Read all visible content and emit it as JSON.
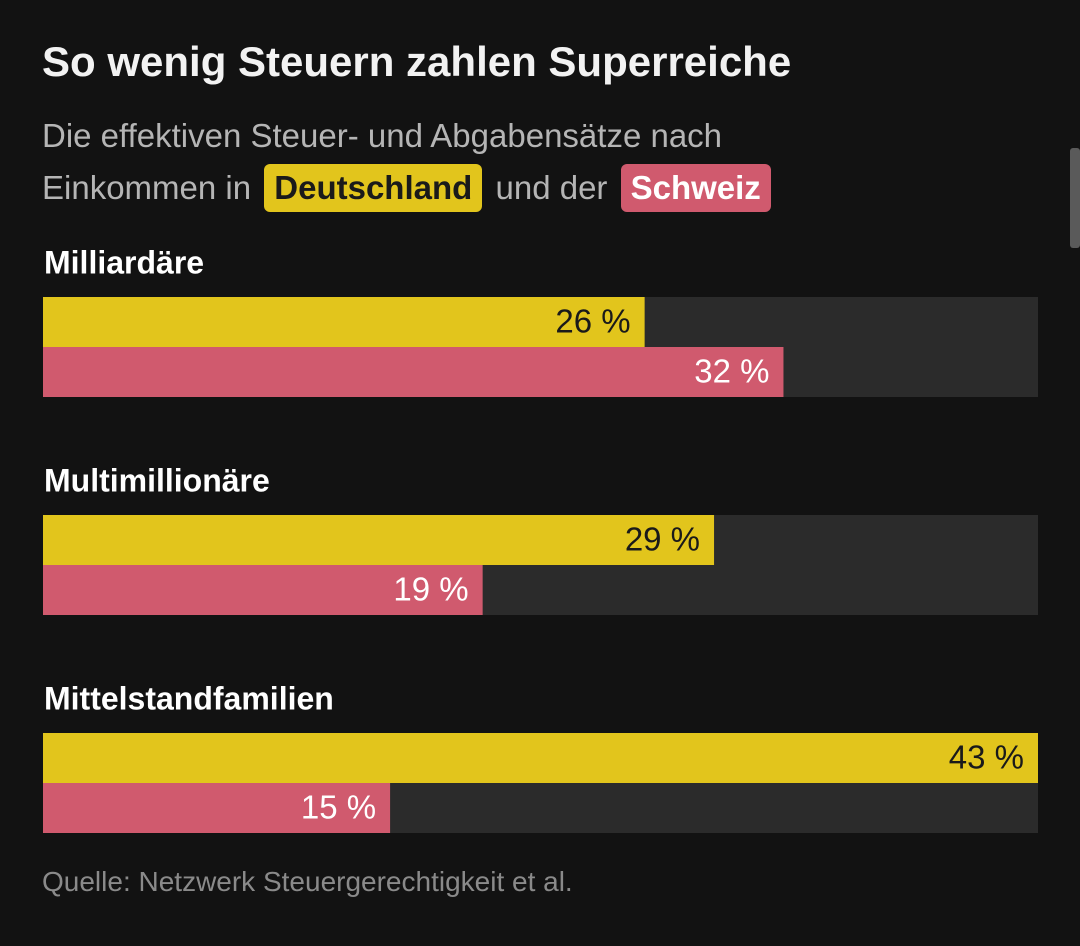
{
  "chart_data": {
    "type": "bar",
    "orientation": "horizontal",
    "title": "So wenig Steuern zahlen Superreiche",
    "subtitle": [
      "Die effektiven Steuer- und Abgabensätze nach",
      "Einkommen in",
      "und der"
    ],
    "categories": [
      "Milliardäre",
      "Multimillionäre",
      "Mittelstandfamilien"
    ],
    "series": [
      {
        "name": "Deutschland",
        "color": "#e2c51c",
        "values": [
          26,
          29,
          43
        ],
        "value_labels": [
          "26 %",
          "29 %",
          "43 %"
        ]
      },
      {
        "name": "Schweiz",
        "color": "#d05a6e",
        "values": [
          32,
          19,
          15
        ],
        "value_labels": [
          "32 %",
          "19 %",
          "15 %"
        ]
      }
    ],
    "xlim": [
      0,
      43
    ],
    "source": "Quelle: Netzwerk Steuergerechtigkeit et al."
  }
}
